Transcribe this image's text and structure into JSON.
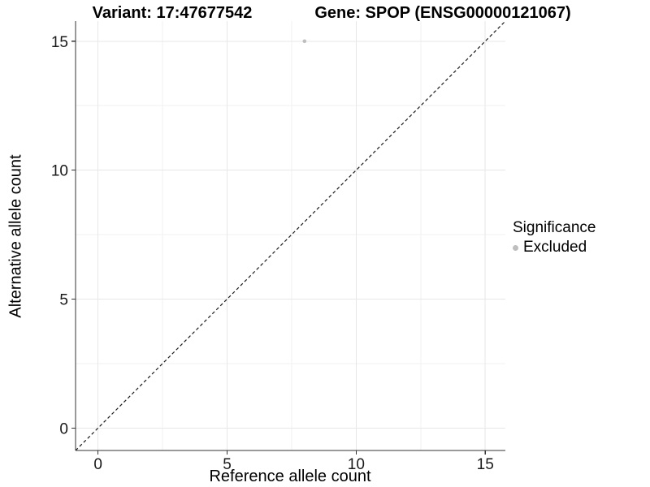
{
  "figure": {
    "titles": {
      "variant": "Variant: 17:47677542",
      "gene": "Gene: SPOP (ENSG00000121067)"
    },
    "x_axis_label": "Reference allele count",
    "y_axis_label": "Alternative allele count"
  },
  "legend": {
    "title": "Significance",
    "items": [
      {
        "label": "Excluded",
        "color": "#bebebe"
      }
    ]
  },
  "colors": {
    "background": "#ffffff",
    "point": "#bebebe",
    "grid_major": "#e7e7e7",
    "grid_minor": "#f2f2f2",
    "axis_line": "#333333",
    "tick_text": "#1a1a1a",
    "identity_line": "#1a1a1a"
  },
  "chart_data": {
    "type": "scatter",
    "title": "Variant: 17:47677542   Gene: SPOP (ENSG00000121067)",
    "xlabel": "Reference allele count",
    "ylabel": "Alternative allele count",
    "xlim": [
      -0.87,
      15.78
    ],
    "ylim": [
      -0.87,
      15.78
    ],
    "x_ticks": [
      0,
      5,
      10,
      15
    ],
    "y_ticks": [
      0,
      5,
      10,
      15
    ],
    "x_minor_ticks": [
      2.5,
      7.5,
      12.5
    ],
    "y_minor_ticks": [
      2.5,
      7.5,
      12.5
    ],
    "grid": "major+minor",
    "identity_line": {
      "style": "dashed",
      "from": [
        -0.87,
        -0.87
      ],
      "to": [
        15.78,
        15.78
      ]
    },
    "series": [
      {
        "name": "Excluded",
        "color": "#bebebe",
        "points": [
          {
            "x": 8,
            "y": 15
          }
        ]
      }
    ],
    "legend": {
      "title": "Significance",
      "position": "right"
    }
  }
}
